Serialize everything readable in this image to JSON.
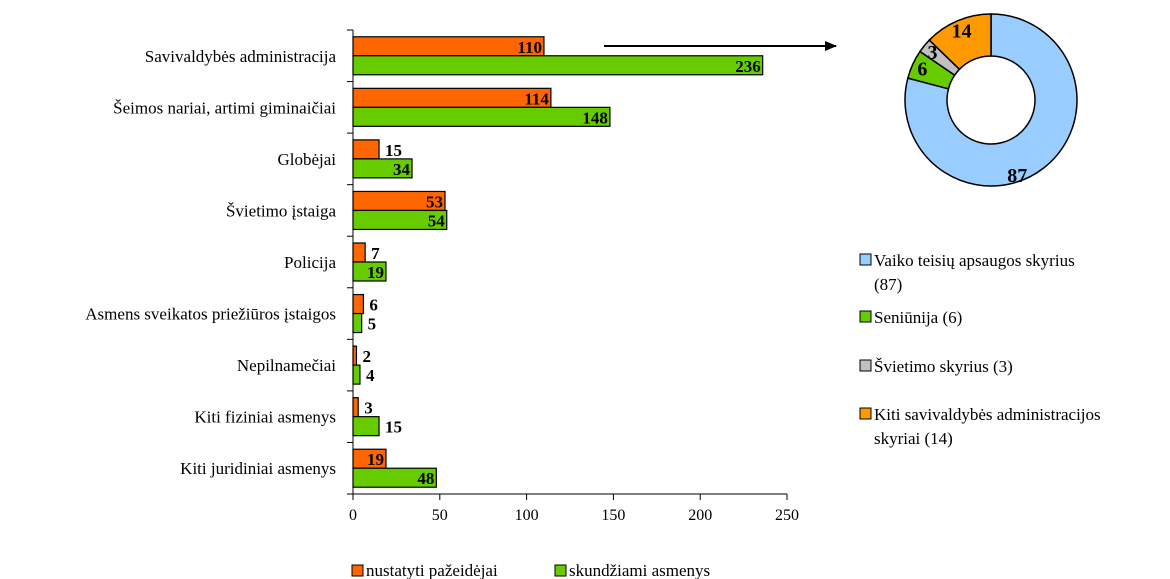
{
  "chart_data": [
    {
      "type": "bar",
      "orientation": "horizontal",
      "categories": [
        "Savivaldybės administracija",
        "Šeimos nariai, artimi giminaičiai",
        "Globėjai",
        "Švietimo įstaiga",
        "Policija",
        "Asmens sveikatos priežiūros įstaigos",
        "Nepilnamečiai",
        "Kiti fiziniai asmenys",
        "Kiti juridiniai asmenys"
      ],
      "series": [
        {
          "name": "nustatyti pažeidėjai",
          "color": "#FF6600",
          "values": [
            110,
            114,
            15,
            53,
            7,
            6,
            2,
            3,
            19
          ]
        },
        {
          "name": "skundžiami asmenys",
          "color": "#66CC00",
          "values": [
            236,
            148,
            34,
            54,
            19,
            5,
            4,
            15,
            48
          ]
        }
      ],
      "xlim": [
        0,
        250
      ],
      "xticks": [
        0,
        50,
        100,
        150,
        200,
        250
      ],
      "grid": false,
      "legend": "bottom"
    },
    {
      "type": "pie",
      "donut": true,
      "slices": [
        {
          "label": "Vaiko teisių apsaugos skyrius (87)",
          "value": 87,
          "color": "#99CCFF"
        },
        {
          "label": "Seniūnija (6)",
          "value": 6,
          "color": "#66CC00"
        },
        {
          "label": "Švietimo skyrius (3)",
          "value": 3,
          "color": "#C0C0C0"
        },
        {
          "label": "Kiti savivaldybės administracijos skyriai (14)",
          "value": 14,
          "color": "#FF9900"
        }
      ],
      "legend": "right"
    }
  ]
}
